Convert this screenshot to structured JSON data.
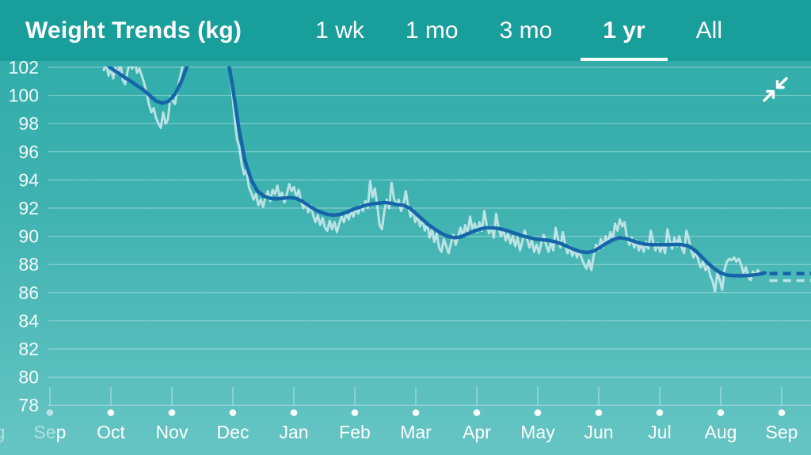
{
  "header": {
    "title": "Weight Trends (kg)",
    "selected_range": "1 yr",
    "tabs": [
      {
        "label": "1 wk",
        "selected": false
      },
      {
        "label": "1 mo",
        "selected": false
      },
      {
        "label": "3 mo",
        "selected": false
      },
      {
        "label": "1 yr",
        "selected": true
      },
      {
        "label": "All",
        "selected": false
      }
    ]
  },
  "icons": {
    "collapse": "collapse-inward-arrows"
  },
  "colors": {
    "header_bg": "#189e9b",
    "chart_bg_top": "#2caba8",
    "chart_bg_bottom": "#66c5c4",
    "gridline": "rgba(255,255,255,0.42)",
    "axis_text": "#ffffff",
    "raw_line": "#d9eef1",
    "trend_line": "#1565a9"
  },
  "chart_data": {
    "type": "line",
    "title": "Weight Trends (kg)",
    "unit": "kg",
    "legend": "none",
    "grid": "horizontal",
    "y_axis": {
      "min": 78,
      "max": 102,
      "tick_step": 2,
      "ticks": [
        102,
        100,
        98,
        96,
        94,
        92,
        90,
        88,
        86,
        84,
        82,
        80,
        78
      ]
    },
    "x_axis": {
      "month_labels": [
        "Sep",
        "Oct",
        "Nov",
        "Dec",
        "Jan",
        "Feb",
        "Mar",
        "Apr",
        "May",
        "Jun",
        "Jul",
        "Aug",
        "Sep"
      ],
      "leading_clipped_label": {
        "label": "Aug",
        "month_index": -1,
        "opacity": 0.5
      },
      "first_label_fade": {
        "prefix": "Se",
        "prefix_opacity": 0.5,
        "suffix": "p",
        "suffix_opacity": 0.95
      },
      "first_dot_opacity": 0.55
    },
    "series": [
      {
        "name": "weight-daily",
        "style": "light-jagged",
        "x_month_start": 0.883,
        "x_month_step": 0.039,
        "kg": [
          101.8,
          102.3,
          101.4,
          101.9,
          101.2,
          102.0,
          101.5,
          102.4,
          101.1,
          100.8,
          101.7,
          102.3,
          101.9,
          102.5,
          101.6,
          101.9,
          101.4,
          100.9,
          100.2,
          99.4,
          98.8,
          99.1,
          98.4,
          98.0,
          97.7,
          98.8,
          98.0,
          98.3,
          99.9,
          99.6,
          99.4,
          100.5,
          101.2,
          102.0,
          102.6,
          103.2,
          103.8,
          104.3,
          104.8,
          105.2,
          105.6,
          105.8,
          106.0,
          106.1,
          106.0,
          105.8,
          105.5,
          105.1,
          104.6,
          104.0,
          103.4,
          102.8,
          102.3,
          101.8,
          100.2,
          98.4,
          96.9,
          96.3,
          95.1,
          94.4,
          94.7,
          93.5,
          93.1,
          92.6,
          93.0,
          92.2,
          92.6,
          92.1,
          92.8,
          93.2,
          92.5,
          93.3,
          93.0,
          93.6,
          92.8,
          93.1,
          92.4,
          93.0,
          93.7,
          93.2,
          93.5,
          92.8,
          93.3,
          92.5,
          92.0,
          92.4,
          91.7,
          92.2,
          91.5,
          91.0,
          91.5,
          90.8,
          91.3,
          90.6,
          90.4,
          91.1,
          90.5,
          91.0,
          90.3,
          90.9,
          91.4,
          91.0,
          91.6,
          91.2,
          91.8,
          91.4,
          92.0,
          91.6,
          92.2,
          91.8,
          92.5,
          92.0,
          93.9,
          92.8,
          93.4,
          92.2,
          90.8,
          90.5,
          91.8,
          92.6,
          92.0,
          93.8,
          92.7,
          92.2,
          92.6,
          91.8,
          92.3,
          93.2,
          92.1,
          91.4,
          91.9,
          91.0,
          91.5,
          90.7,
          91.2,
          90.4,
          90.9,
          89.9,
          90.5,
          89.6,
          90.2,
          89.2,
          88.9,
          89.8,
          89.3,
          88.8,
          89.5,
          90.1,
          89.4,
          90.0,
          90.6,
          90.0,
          90.8,
          90.2,
          91.4,
          90.5,
          90.9,
          90.3,
          91.0,
          90.4,
          91.8,
          90.8,
          90.2,
          90.7,
          89.9,
          91.6,
          90.6,
          90.0,
          90.5,
          89.7,
          90.2,
          89.5,
          90.0,
          89.3,
          89.9,
          89.0,
          89.6,
          90.4,
          89.8,
          89.2,
          89.7,
          88.9,
          89.4,
          88.8,
          89.5,
          90.1,
          89.4,
          88.9,
          89.6,
          89.0,
          90.6,
          89.8,
          89.2,
          90.3,
          89.4,
          88.8,
          89.3,
          88.6,
          89.1,
          88.5,
          89.0,
          88.4,
          88.0,
          87.7,
          88.3,
          87.6,
          88.6,
          89.4,
          89.0,
          89.8,
          89.2,
          90.0,
          89.5,
          90.3,
          89.8,
          90.9,
          90.4,
          91.2,
          90.7,
          91.0,
          89.9,
          89.4,
          89.9,
          89.2,
          89.7,
          89.0,
          89.5,
          88.9,
          89.6,
          89.1,
          90.4,
          89.6,
          89.0,
          89.5,
          88.9,
          89.4,
          88.8,
          90.5,
          89.7,
          89.1,
          89.9,
          89.3,
          90.0,
          89.2,
          88.8,
          90.4,
          89.8,
          89.0,
          88.5,
          88.9,
          88.3,
          87.8,
          88.2,
          87.6,
          87.9,
          87.2,
          86.8,
          86.1,
          87.4,
          86.9,
          86.2,
          87.6,
          88.2,
          88.4,
          88.3,
          88.5,
          88.2,
          88.4,
          88.0,
          87.4,
          87.8,
          87.1,
          86.9,
          87.5,
          87.2,
          87.6,
          87.3
        ]
      },
      {
        "name": "weight-trend",
        "style": "dark-smooth",
        "x_month_start": 0.909,
        "x_month_step": 0.104,
        "kg": [
          102.3,
          101.9,
          101.6,
          101.3,
          101.0,
          100.7,
          100.4,
          100.0,
          99.6,
          99.45,
          99.6,
          100.1,
          101.0,
          102.2,
          103.6,
          104.8,
          105.5,
          105.6,
          105.0,
          103.4,
          100.8,
          97.8,
          95.4,
          94.0,
          93.2,
          92.85,
          92.7,
          92.65,
          92.7,
          92.75,
          92.7,
          92.5,
          92.2,
          91.9,
          91.7,
          91.55,
          91.5,
          91.55,
          91.7,
          91.9,
          92.05,
          92.2,
          92.3,
          92.35,
          92.4,
          92.35,
          92.25,
          92.2,
          92.0,
          91.6,
          91.2,
          90.8,
          90.5,
          90.2,
          90.0,
          89.9,
          89.95,
          90.15,
          90.35,
          90.5,
          90.6,
          90.6,
          90.55,
          90.45,
          90.3,
          90.15,
          90.0,
          89.9,
          89.8,
          89.75,
          89.7,
          89.6,
          89.45,
          89.25,
          89.05,
          88.9,
          88.85,
          88.95,
          89.2,
          89.5,
          89.75,
          89.9,
          89.85,
          89.7,
          89.55,
          89.45,
          89.4,
          89.4,
          89.4,
          89.4,
          89.42,
          89.4,
          89.3,
          89.0,
          88.55,
          88.1,
          87.7,
          87.4,
          87.25,
          87.2,
          87.2,
          87.2,
          87.25,
          87.3,
          87.4
        ]
      }
    ],
    "projection": {
      "style": "dashed",
      "x_month_start": 11.8,
      "x_month_end": 12.48,
      "trend_kg": 87.35,
      "raw_kg": 86.85
    }
  }
}
